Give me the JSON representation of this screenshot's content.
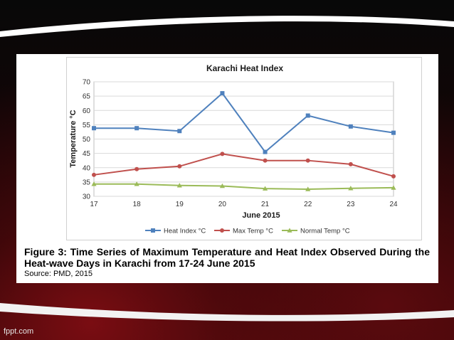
{
  "slide": {
    "watermark": "fppt.com",
    "figure_caption": "Figure 3: Time Series of Maximum Temperature and Heat Index Observed During the Heat-wave Days in Karachi from 17-24 June 2015",
    "source": "Source: PMD, 2015"
  },
  "colors": {
    "heat_index": "#4f81bd",
    "max_temp": "#c0504d",
    "normal_temp": "#9bbb59"
  },
  "chart_data": {
    "type": "line",
    "title": "Karachi Heat Index",
    "xlabel": "June 2015",
    "ylabel": "Temperature °C",
    "x": [
      17,
      18,
      19,
      20,
      21,
      22,
      23,
      24
    ],
    "ylim": [
      30,
      70
    ],
    "yticks": [
      30,
      35,
      40,
      45,
      50,
      55,
      60,
      65,
      70
    ],
    "grid": "horizontal",
    "legend_position": "bottom",
    "series": [
      {
        "name": "Heat Index °C",
        "color": "#4f81bd",
        "marker": "square",
        "values": [
          53.8,
          53.8,
          52.8,
          66.0,
          45.5,
          58.2,
          54.4,
          52.2
        ]
      },
      {
        "name": "Max Temp °C",
        "color": "#c0504d",
        "marker": "circle",
        "values": [
          37.5,
          39.5,
          40.5,
          44.8,
          42.5,
          42.5,
          41.2,
          37.0
        ]
      },
      {
        "name": "Normal Temp °C",
        "color": "#9bbb59",
        "marker": "triangle",
        "values": [
          34.3,
          34.3,
          33.8,
          33.6,
          32.7,
          32.5,
          32.8,
          33.0
        ]
      }
    ]
  }
}
